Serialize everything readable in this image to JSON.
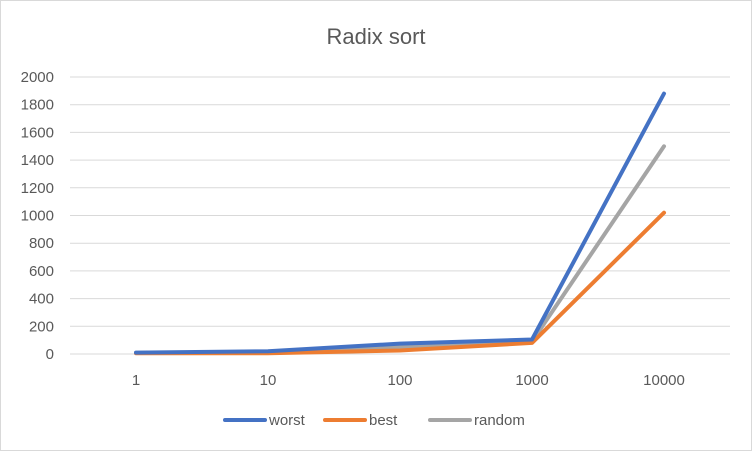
{
  "chart_data": {
    "type": "line",
    "title": "Radix sort",
    "xlabel": "",
    "ylabel": "",
    "categories": [
      "1",
      "10",
      "100",
      "1000",
      "10000"
    ],
    "ylim": [
      0,
      2000
    ],
    "yticks": [
      0,
      200,
      400,
      600,
      800,
      1000,
      1200,
      1400,
      1600,
      1800,
      2000
    ],
    "grid": true,
    "legend_position": "bottom",
    "series": [
      {
        "name": "worst",
        "color": "#4472c4",
        "values": [
          10,
          20,
          75,
          105,
          1880
        ]
      },
      {
        "name": "best",
        "color": "#ed7d31",
        "values": [
          5,
          5,
          25,
          80,
          1020
        ]
      },
      {
        "name": "random",
        "color": "#a5a5a5",
        "values": [
          8,
          15,
          50,
          90,
          1500
        ]
      }
    ]
  }
}
